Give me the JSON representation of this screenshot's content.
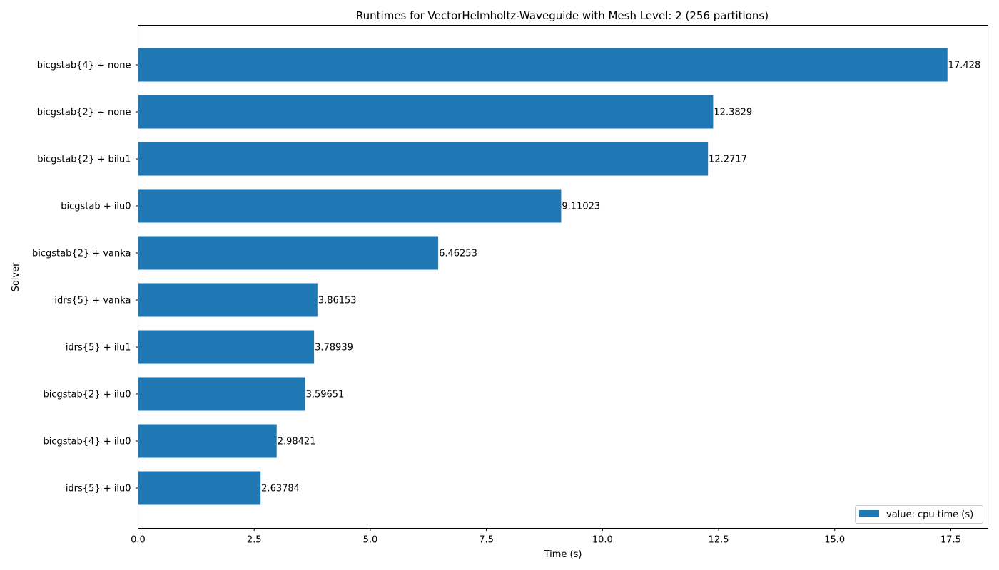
{
  "chart_data": {
    "type": "bar",
    "orientation": "horizontal",
    "title": "Runtimes for VectorHelmholtz-Waveguide with Mesh Level: 2 (256 partitions)",
    "xlabel": "Time (s)",
    "ylabel": "Solver",
    "xlim": [
      0,
      18.3
    ],
    "x_ticks": [
      0.0,
      2.5,
      5.0,
      7.5,
      10.0,
      12.5,
      15.0,
      17.5
    ],
    "x_tick_labels": [
      "0.0",
      "2.5",
      "5.0",
      "7.5",
      "10.0",
      "12.5",
      "15.0",
      "17.5"
    ],
    "grid": false,
    "legend": {
      "placement": "bottom-right",
      "entries": [
        "value: cpu time (s)"
      ]
    },
    "color": "#1f77b4",
    "categories": [
      "bicgstab{4} + none",
      "bicgstab{2} + none",
      "bicgstab{2} + bilu1",
      "bicgstab + ilu0",
      "bicgstab{2} + vanka",
      "idrs{5} + vanka",
      "idrs{5} + ilu1",
      "bicgstab{2} + ilu0",
      "bicgstab{4} + ilu0",
      "idrs{5} + ilu0"
    ],
    "series": [
      {
        "name": "value: cpu time (s)",
        "values": [
          17.428,
          12.3829,
          12.2717,
          9.11023,
          6.46253,
          3.86153,
          3.78939,
          3.59651,
          2.98421,
          2.63784
        ],
        "labels": [
          "17.428",
          "12.3829",
          "12.2717",
          "9.11023",
          "6.46253",
          "3.86153",
          "3.78939",
          "3.59651",
          "2.98421",
          "2.63784"
        ]
      }
    ]
  }
}
